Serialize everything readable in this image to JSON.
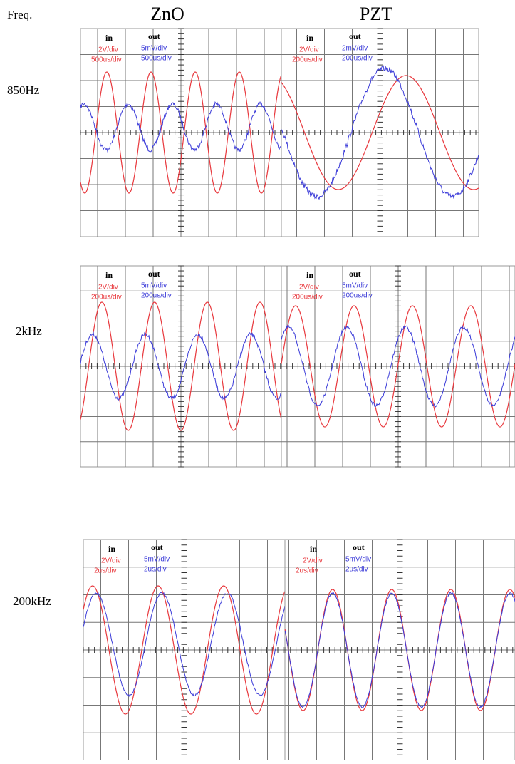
{
  "header": {
    "freq_label": "Freq.",
    "columns": [
      "ZnO",
      "PZT"
    ]
  },
  "rows": [
    {
      "freq": "850Hz",
      "panels": [
        {
          "in_label": "in",
          "in_scale": [
            "2V/div",
            "500us/div"
          ],
          "out_label": "out",
          "out_scale": [
            "5mV/div",
            "500us/div"
          ]
        },
        {
          "in_label": "in",
          "in_scale": [
            "2V/div",
            "200us/div"
          ],
          "out_label": "out",
          "out_scale": [
            "2mV/div",
            "200us/div"
          ]
        }
      ]
    },
    {
      "freq": "2kHz",
      "panels": [
        {
          "in_label": "in",
          "in_scale": [
            "2V/div",
            "200us/div"
          ],
          "out_label": "out",
          "out_scale": [
            "5mV/div",
            "200us/div"
          ]
        },
        {
          "in_label": "in",
          "in_scale": [
            "2V/div",
            "200us/div"
          ],
          "out_label": "out",
          "out_scale": [
            "5mV/div",
            "200us/div"
          ]
        }
      ]
    },
    {
      "freq": "200kHz",
      "panels": [
        {
          "in_label": "in",
          "in_scale": [
            "2V/div",
            "2us/div"
          ],
          "out_label": "out",
          "out_scale": [
            "5mV/div",
            "2us/div"
          ]
        },
        {
          "in_label": "in",
          "in_scale": [
            "2V/div",
            "2us/div"
          ],
          "out_label": "out",
          "out_scale": [
            "5mV/div",
            "2us/div"
          ]
        }
      ]
    }
  ]
}
